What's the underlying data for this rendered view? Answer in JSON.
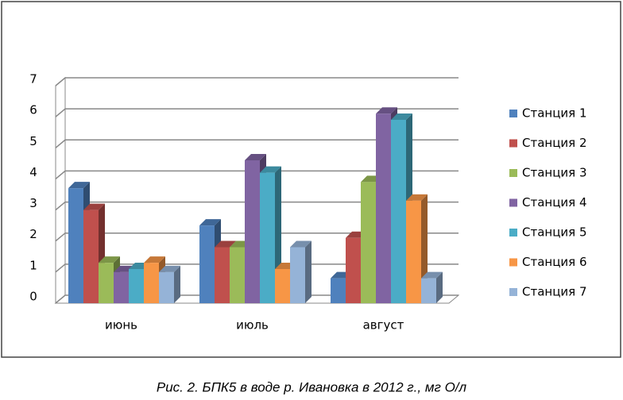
{
  "chart_data": {
    "type": "bar3d",
    "caption": "Рис. 2. БПК5  в воде р. Ивановка в  2012 г.,  мг О/л",
    "categories": [
      "июнь",
      "июль",
      "август"
    ],
    "series": [
      {
        "name": "Станция 1",
        "color": "#4f81bd",
        "values": [
          3.7,
          2.5,
          0.8
        ]
      },
      {
        "name": "Станция 2",
        "color": "#c0504d",
        "values": [
          3.0,
          1.8,
          2.1
        ]
      },
      {
        "name": "Станция 3",
        "color": "#9bbb59",
        "values": [
          1.3,
          1.8,
          3.9
        ]
      },
      {
        "name": "Станция 4",
        "color": "#8064a2",
        "values": [
          1.0,
          4.6,
          6.1
        ]
      },
      {
        "name": "Станция 5",
        "color": "#4bacc6",
        "values": [
          1.1,
          4.2,
          5.9
        ]
      },
      {
        "name": "Станция 6",
        "color": "#f79646",
        "values": [
          1.3,
          1.1,
          3.3
        ]
      },
      {
        "name": "Станция 7",
        "color": "#95b3d7",
        "values": [
          1.0,
          1.8,
          0.8
        ]
      }
    ],
    "ylim": [
      0,
      7
    ],
    "yticks": [
      0,
      1,
      2,
      3,
      4,
      5,
      6,
      7
    ],
    "grid": true,
    "legend": "right"
  }
}
